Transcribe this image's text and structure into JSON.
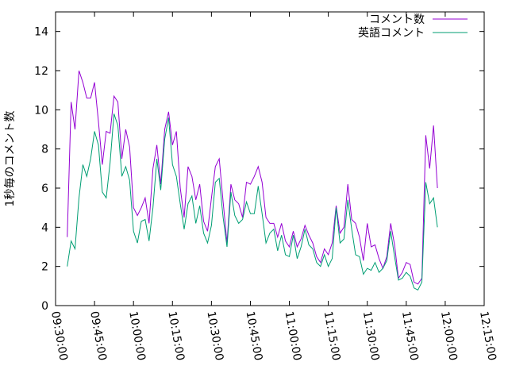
{
  "chart_data": {
    "type": "line",
    "title": "",
    "xlabel": "",
    "ylabel": "1秒毎のコメント数",
    "xlim": [
      "09:30:00",
      "12:15:00"
    ],
    "ylim": [
      0,
      15
    ],
    "x_ticks": [
      "09:30:00",
      "09:45:00",
      "10:00:00",
      "10:15:00",
      "10:30:00",
      "10:45:00",
      "11:00:00",
      "11:15:00",
      "11:30:00",
      "11:45:00",
      "12:00:00",
      "12:15:00"
    ],
    "y_ticks": [
      "0",
      "2",
      "4",
      "6",
      "8",
      "10",
      "12",
      "14"
    ],
    "grid": false,
    "legend_position": "top-right",
    "x_start": "09:34:30",
    "x_step_seconds": 90,
    "series": [
      {
        "name": "コメント数",
        "color": "#9400d3",
        "values": [
          3.5,
          10.4,
          9.0,
          12.0,
          11.4,
          10.6,
          10.6,
          11.4,
          9.4,
          7.2,
          8.9,
          8.8,
          10.7,
          10.4,
          7.5,
          9.0,
          8.1,
          5.0,
          4.6,
          5.0,
          5.5,
          4.2,
          7.0,
          8.2,
          6.2,
          9.0,
          9.9,
          8.2,
          8.9,
          6.0,
          4.5,
          7.1,
          6.6,
          5.4,
          6.2,
          4.3,
          3.8,
          5.5,
          7.1,
          7.5,
          5.3,
          3.2,
          6.2,
          5.4,
          5.2,
          4.5,
          6.3,
          6.2,
          6.6,
          7.1,
          6.3,
          4.5,
          4.2,
          4.2,
          3.5,
          4.2,
          3.3,
          3.0,
          3.8,
          3.0,
          3.4,
          4.1,
          3.6,
          3.2,
          2.5,
          2.2,
          2.9,
          2.6,
          3.2,
          5.1,
          3.7,
          4.0,
          6.2,
          4.4,
          4.2,
          3.5,
          2.3,
          4.2,
          3.0,
          3.1,
          2.4,
          1.9,
          2.5,
          4.2,
          3.1,
          1.4,
          1.7,
          2.2,
          2.1,
          1.2,
          1.1,
          1.4,
          8.7,
          7.0,
          9.2,
          6.0
        ]
      },
      {
        "name": "英語コメント",
        "color": "#009e73",
        "values": [
          2.0,
          3.3,
          2.9,
          5.5,
          7.2,
          6.6,
          7.5,
          8.9,
          8.2,
          5.8,
          5.5,
          7.3,
          9.8,
          9.2,
          6.6,
          7.1,
          6.4,
          3.8,
          3.2,
          4.3,
          4.4,
          3.3,
          5.0,
          7.5,
          5.9,
          8.5,
          9.6,
          7.2,
          6.6,
          5.2,
          3.9,
          5.2,
          5.6,
          4.2,
          5.1,
          3.7,
          3.2,
          4.1,
          6.3,
          6.5,
          4.5,
          3.0,
          5.8,
          4.6,
          4.2,
          4.4,
          5.3,
          4.7,
          4.7,
          6.1,
          4.7,
          3.2,
          3.7,
          3.9,
          2.8,
          3.6,
          2.6,
          2.5,
          3.6,
          2.4,
          3.0,
          3.9,
          3.1,
          2.9,
          2.2,
          2.0,
          2.6,
          2.0,
          2.4,
          5.0,
          3.2,
          3.4,
          5.4,
          3.9,
          2.6,
          2.5,
          1.6,
          1.9,
          1.8,
          2.2,
          1.7,
          1.9,
          2.3,
          3.8,
          2.5,
          1.3,
          1.4,
          1.7,
          1.5,
          0.9,
          0.8,
          1.2,
          6.3,
          5.2,
          5.5,
          4.0
        ]
      }
    ]
  }
}
